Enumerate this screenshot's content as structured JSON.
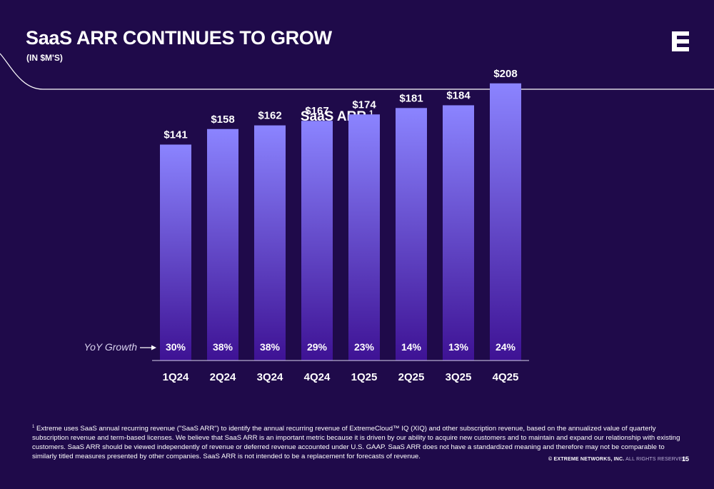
{
  "page": {
    "title": "SaaS ARR CONTINUES TO GROW",
    "subtitle": "(IN $M'S)",
    "page_number": "15",
    "copyright_company": "© EXTREME NETWORKS, INC.",
    "copyright_rest": "ALL RIGHTS RESERVED.",
    "footnote_marker": "1",
    "footnote": "Extreme uses SaaS annual recurring revenue (\"SaaS ARR\") to identify the annual recurring revenue of ExtremeCloud™ IQ (XIQ) and other subscription revenue, based on the annualized value of quarterly subscription revenue and term-based licenses. We believe that SaaS ARR is an important metric because it is driven by our ability to acquire new customers and to maintain and expand our relationship with existing customers. SaaS ARR should be viewed independently of revenue  or deferred revenue accounted under U.S. GAAP. SaaS ARR does not have a standardized meaning and therefore may not be comparable to similarly titled measures presented by other companies. SaaS ARR is not intended to be a replacement for forecasts of revenue."
  },
  "logo": {
    "icon": "extreme-e-logo-icon"
  },
  "colors": {
    "background": "#1f0a4a",
    "bar_top": "#8b84ff",
    "bar_bottom": "#3e1294",
    "text": "#ffffff",
    "muted_text": "#d8d2ee"
  },
  "chart_data": {
    "type": "bar",
    "title": "SaaS ARR",
    "title_superscript": "1",
    "categories": [
      "1Q24",
      "2Q24",
      "3Q24",
      "4Q24",
      "1Q25",
      "2Q25",
      "3Q25",
      "4Q25"
    ],
    "values": [
      141,
      158,
      162,
      167,
      174,
      181,
      184,
      208
    ],
    "value_labels": [
      "$141",
      "$158",
      "$162",
      "$167",
      "$174",
      "$181",
      "$184",
      "$208"
    ],
    "yoy_label": "YoY Growth",
    "yoy_growth": [
      "30%",
      "38%",
      "38%",
      "29%",
      "23%",
      "14%",
      "13%",
      "24%"
    ],
    "grid": false,
    "legend": "none"
  }
}
